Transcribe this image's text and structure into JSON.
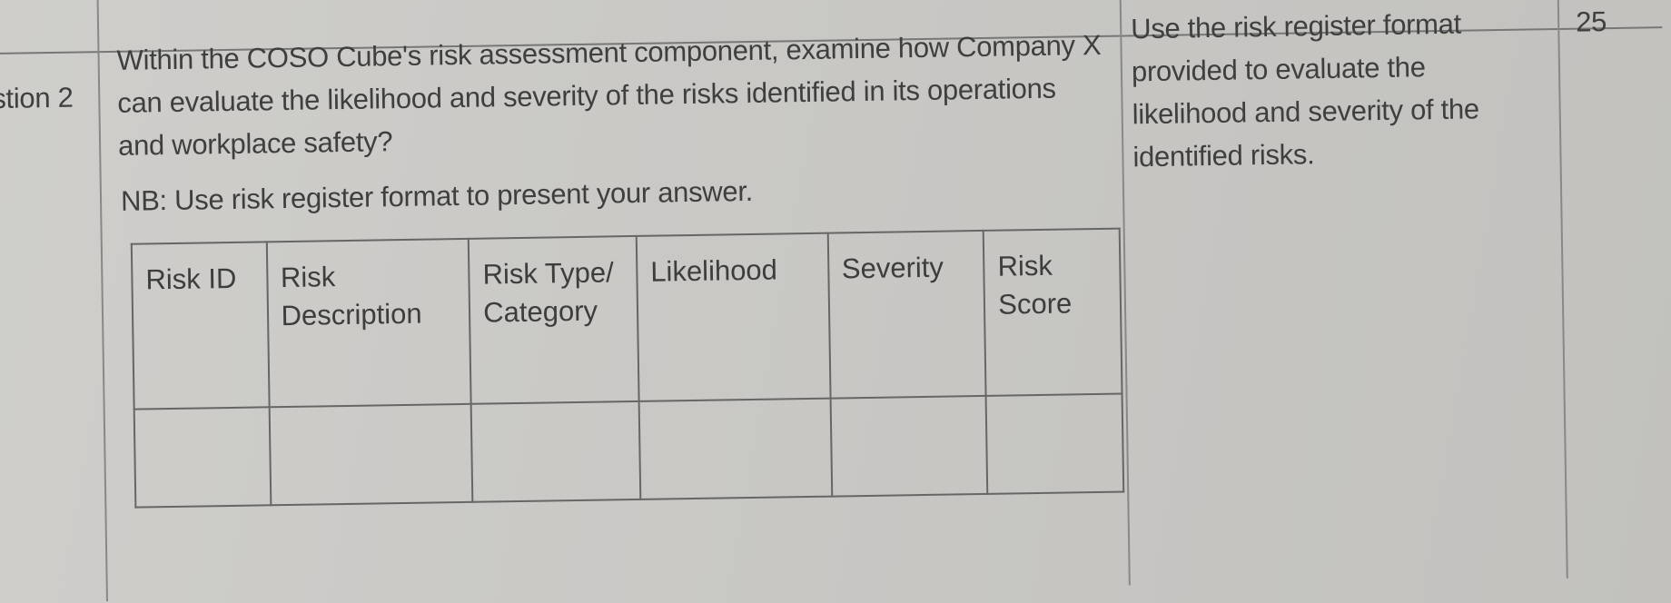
{
  "question_label": "stion 2",
  "question_text": "Within the COSO Cube's risk assessment component, examine how Company X can evaluate the likelihood and severity of the risks identified in its operations and workplace safety?",
  "note": "NB: Use risk register format to present your answer.",
  "guidance": "Use the risk register format provided to evaluate the likelihood and severity of the identified risks.",
  "marks": "25",
  "risk_register": {
    "columns": [
      "Risk ID",
      "Risk Description",
      "Risk Type/ Category",
      "Likelihood",
      "Severity",
      "Risk Score"
    ],
    "rows": [
      [
        "",
        "",
        "",
        "",
        "",
        ""
      ]
    ]
  }
}
